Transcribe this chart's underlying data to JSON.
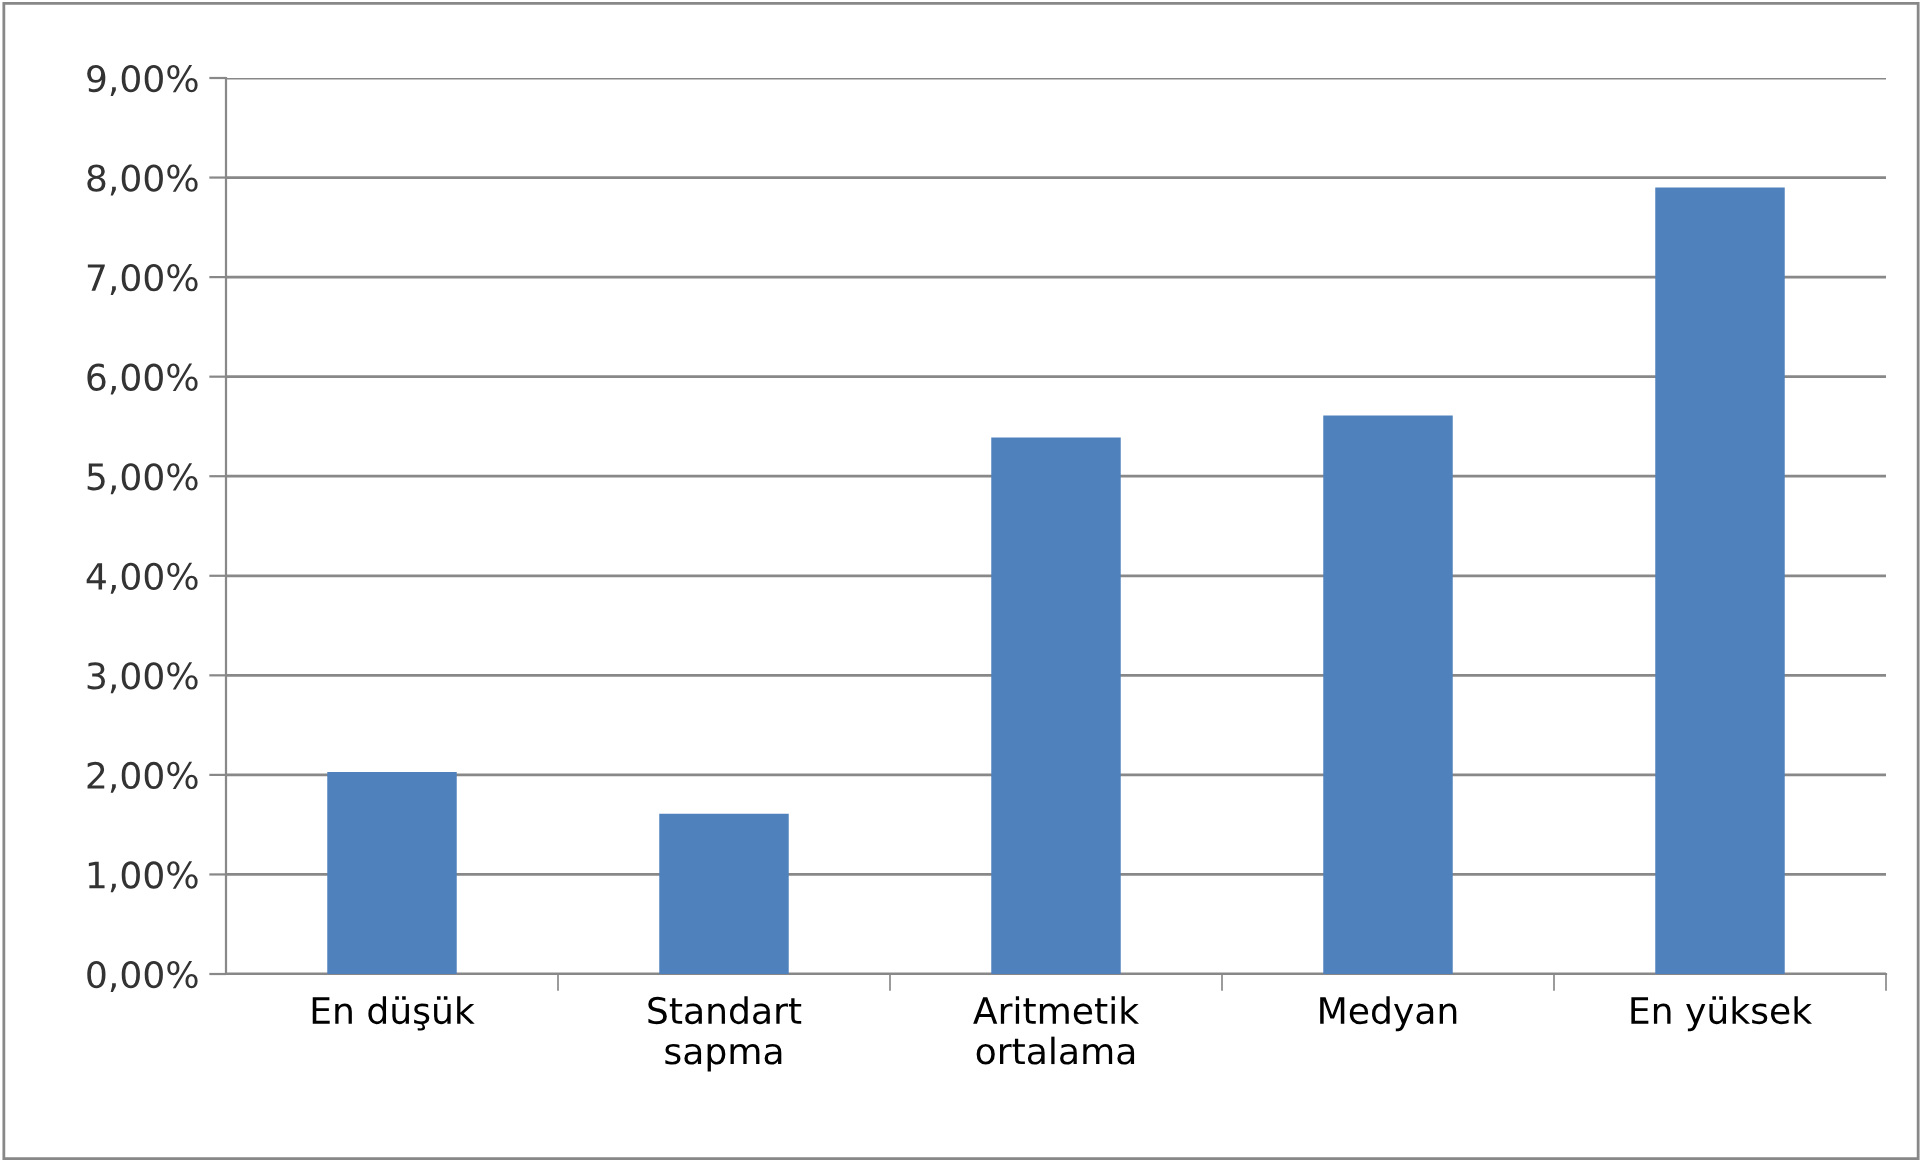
{
  "chart_data": {
    "type": "bar",
    "categories": [
      "En düşük",
      "Standart\nsapma",
      "Aritmetik\nortalama",
      "Medyan",
      "En yüksek"
    ],
    "values": [
      2.03,
      1.61,
      5.39,
      5.61,
      7.9
    ],
    "color": "#4f81bd",
    "ylim": [
      0,
      9
    ],
    "yticks": [
      {
        "value": 0,
        "label": "0,00%"
      },
      {
        "value": 1,
        "label": "1,00%"
      },
      {
        "value": 2,
        "label": "2,00%"
      },
      {
        "value": 3,
        "label": "3,00%"
      },
      {
        "value": 4,
        "label": "4,00%"
      },
      {
        "value": 5,
        "label": "5,00%"
      },
      {
        "value": 6,
        "label": "6,00%"
      },
      {
        "value": 7,
        "label": "7,00%"
      },
      {
        "value": 8,
        "label": "8,00%"
      },
      {
        "value": 9,
        "label": "9,00%"
      }
    ],
    "grid": "y",
    "legend": false
  }
}
